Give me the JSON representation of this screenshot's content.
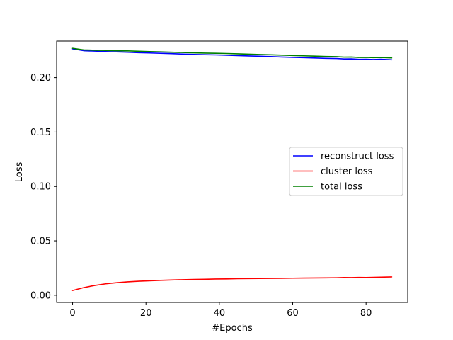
{
  "chart_data": {
    "type": "line",
    "title": "",
    "xlabel": "#Epochs",
    "ylabel": "Loss",
    "xlim": [
      -4.35,
      91.35
    ],
    "ylim": [
      -0.0066,
      0.2336
    ],
    "xticks": [
      0,
      20,
      40,
      60,
      80
    ],
    "xtick_labels": [
      "0",
      "20",
      "40",
      "60",
      "80"
    ],
    "yticks": [
      0.0,
      0.05,
      0.1,
      0.15,
      0.2
    ],
    "ytick_labels": [
      "0.00",
      "0.05",
      "0.10",
      "0.15",
      "0.20"
    ],
    "grid": false,
    "legend_position": "center-right",
    "x": [
      0,
      3,
      6,
      9,
      12,
      15,
      18,
      21,
      24,
      27,
      30,
      33,
      36,
      39,
      42,
      45,
      48,
      51,
      54,
      57,
      60,
      63,
      66,
      69,
      72,
      74,
      76,
      78,
      80,
      82,
      84,
      87
    ],
    "series": [
      {
        "name": "reconstruct loss",
        "color": "#0000ff",
        "values": [
          0.2265,
          0.2248,
          0.2244,
          0.224,
          0.2237,
          0.2234,
          0.223,
          0.2227,
          0.2224,
          0.2221,
          0.2217,
          0.2214,
          0.2211,
          0.2209,
          0.2206,
          0.2203,
          0.22,
          0.2197,
          0.2194,
          0.219,
          0.2187,
          0.2184,
          0.2181,
          0.2178,
          0.2176,
          0.2172,
          0.2173,
          0.2169,
          0.217,
          0.2167,
          0.217,
          0.2165
        ]
      },
      {
        "name": "cluster loss",
        "color": "#ff0000",
        "values": [
          0.0044,
          0.007,
          0.009,
          0.0105,
          0.0115,
          0.0123,
          0.0129,
          0.0133,
          0.0137,
          0.014,
          0.0143,
          0.0145,
          0.0147,
          0.0149,
          0.015,
          0.0152,
          0.0153,
          0.0154,
          0.0155,
          0.0156,
          0.0157,
          0.0158,
          0.0159,
          0.016,
          0.0161,
          0.0163,
          0.0162,
          0.0164,
          0.0163,
          0.0165,
          0.0166,
          0.0169
        ]
      },
      {
        "name": "total loss",
        "color": "#008000",
        "values": [
          0.227,
          0.2255,
          0.2252,
          0.225,
          0.2248,
          0.2246,
          0.2243,
          0.224,
          0.2237,
          0.2234,
          0.2231,
          0.2228,
          0.2226,
          0.2224,
          0.2222,
          0.2219,
          0.2216,
          0.2213,
          0.221,
          0.2207,
          0.2204,
          0.2201,
          0.2198,
          0.2195,
          0.2193,
          0.2189,
          0.219,
          0.2186,
          0.2187,
          0.2184,
          0.2186,
          0.2182
        ]
      }
    ]
  }
}
